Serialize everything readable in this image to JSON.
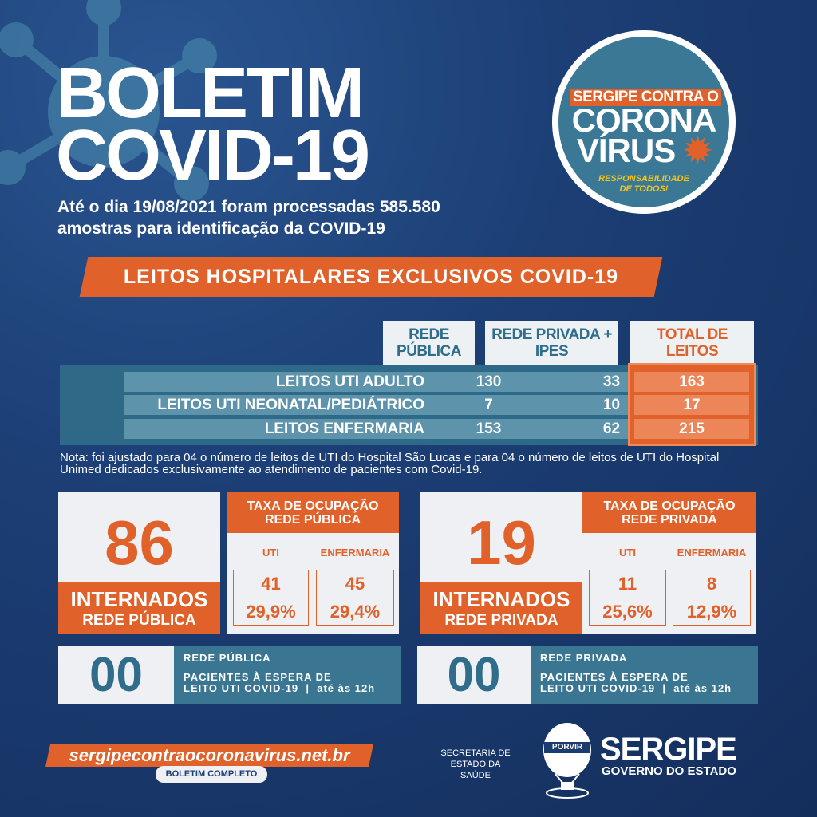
{
  "header": {
    "title_line1": "BOLETIM",
    "title_line2": "COVID-19",
    "subtitle_line1": "Até o dia 19/08/2021 foram processadas 585.580",
    "subtitle_line2": "amostras para identificação da COVID-19"
  },
  "badge": {
    "line1": "SERGIPE CONTRA O",
    "line2": "CORONA",
    "line3": "VÍRUS",
    "tagline1": "RESPONSABILIDADE",
    "tagline2": "DE TODOS!"
  },
  "banner": "LEITOS HOSPITALARES EXCLUSIVOS COVID-19",
  "table": {
    "headers": [
      "REDE PÚBLICA",
      "REDE PRIVADA + IPES",
      "TOTAL DE LEITOS"
    ],
    "rows": [
      {
        "label": "LEITOS UTI ADULTO",
        "publica": "130",
        "privada": "33",
        "total": "163"
      },
      {
        "label": "LEITOS UTI NEONATAL/PEDIÁTRICO",
        "publica": "7",
        "privada": "10",
        "total": "17"
      },
      {
        "label": "LEITOS ENFERMARIA",
        "publica": "153",
        "privada": "62",
        "total": "215"
      }
    ]
  },
  "note": "Nota: foi ajustado para 04 o número de leitos de UTI do Hospital São Lucas e para 04 o número de leitos de UTI do Hospital Unimed dedicados exclusivamente ao atendimento de pacientes com Covid-19.",
  "publica": {
    "internados": "86",
    "label1": "INTERNADOS",
    "label2": "REDE PÚBLICA",
    "taxa_title1": "TAXA DE OCUPAÇÃO",
    "taxa_title2": "REDE PÚBLICA",
    "uti_label": "UTI",
    "enf_label": "ENFERMARIA",
    "uti_count": "41",
    "uti_pct": "29,9%",
    "enf_count": "45",
    "enf_pct": "29,4%",
    "espera": "00",
    "espera_rede": "REDE PÚBLICA",
    "espera_text1": "PACIENTES À ESPERA DE",
    "espera_text2": "LEITO UTI COVID-19  |  até às 12h"
  },
  "privada": {
    "internados": "19",
    "label1": "INTERNADOS",
    "label2": "REDE PRIVADA",
    "taxa_title1": "TAXA DE OCUPAÇÃO",
    "taxa_title2": "REDE PRIVADA",
    "uti_label": "UTI",
    "enf_label": "ENFERMARIA",
    "uti_count": "11",
    "uti_pct": "25,6%",
    "enf_count": "8",
    "enf_pct": "12,9%",
    "espera": "00",
    "espera_rede": "REDE PRIVADA",
    "espera_text1": "PACIENTES À ESPERA DE",
    "espera_text2": "LEITO UTI COVID-19  |  até às 12h"
  },
  "footer": {
    "url": "sergipecontraocoronavirus.net.br",
    "button": "BOLETIM COMPLETO",
    "secretaria1": "SECRETARIA DE",
    "secretaria2": "ESTADO DA SAÚDE",
    "seal_text": "PORVIR",
    "logo1": "SERGIPE",
    "logo2": "GOVERNO DO ESTADO"
  },
  "colors": {
    "background": "#1b3c70",
    "accent": "#e0622a",
    "teal": "#2f6d8a",
    "light": "#eef0f3"
  }
}
